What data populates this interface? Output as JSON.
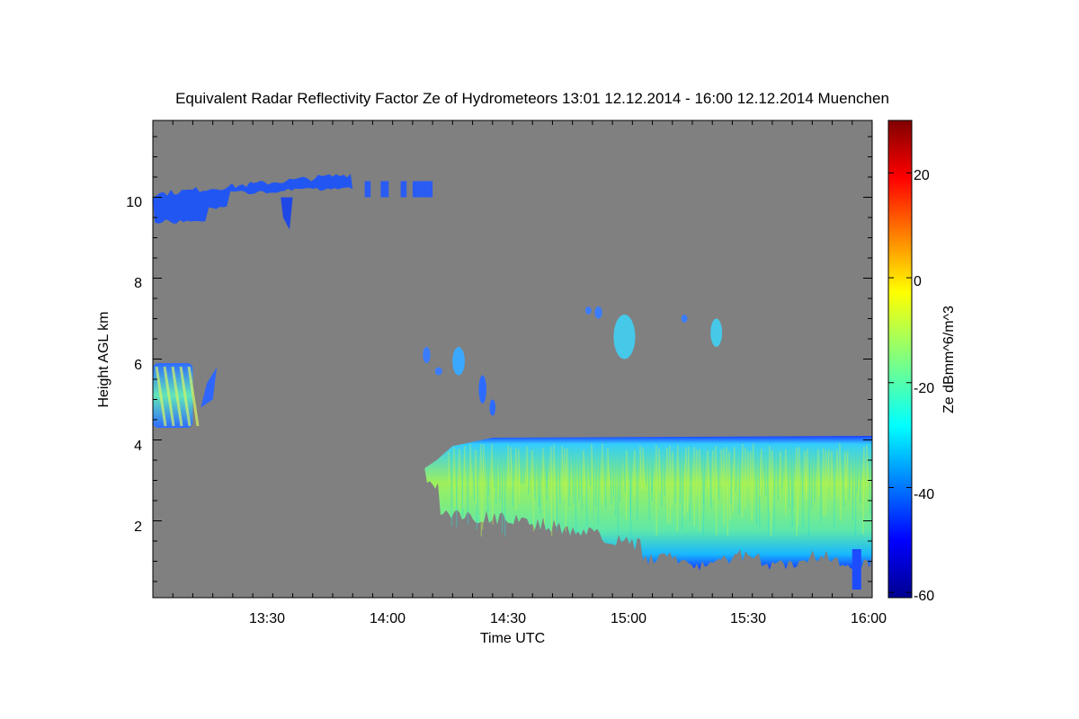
{
  "chart_data": {
    "type": "heatmap",
    "title": "Equivalent Radar Reflectivity Factor Ze of Hydrometeors   13:01 12.12.2014 - 16:00 12.12.2014 Muenchen",
    "xlabel": "Time UTC",
    "ylabel": "Height AGL km",
    "colorbar_label": "Ze dBmm^6/m^3",
    "x_range_minutes_utc": [
      781,
      961
    ],
    "y_range_km": [
      0.1,
      11.9
    ],
    "colorbar_range_dbz": [
      -61,
      30
    ],
    "x_ticks": [
      {
        "label": "13:30",
        "value": 810
      },
      {
        "label": "14:00",
        "value": 840
      },
      {
        "label": "14:30",
        "value": 870
      },
      {
        "label": "15:00",
        "value": 900
      },
      {
        "label": "15:30",
        "value": 930
      },
      {
        "label": "16:00",
        "value": 960
      }
    ],
    "y_ticks": [
      {
        "label": "2",
        "value": 2
      },
      {
        "label": "4",
        "value": 4
      },
      {
        "label": "6",
        "value": 6
      },
      {
        "label": "8",
        "value": 8
      },
      {
        "label": "10",
        "value": 10
      }
    ],
    "colorbar_ticks": [
      {
        "label": "-60",
        "value": -60
      },
      {
        "label": "-40",
        "value": -40
      },
      {
        "label": "-20",
        "value": -20
      },
      {
        "label": "0",
        "value": 0
      },
      {
        "label": "20",
        "value": 20
      }
    ],
    "background_color": "#808080",
    "echo_features": [
      {
        "name": "cirrus-layer",
        "t_start": 781,
        "t_end": 831,
        "z_bottom": 9.4,
        "z_top": 10.6,
        "ze_dbz": -42
      },
      {
        "name": "cirrus-fragments",
        "t_start": 834,
        "t_end": 851,
        "z_bottom": 10.0,
        "z_top": 10.4,
        "ze_dbz": -45
      },
      {
        "name": "cirrus-virga",
        "t_start": 813,
        "t_end": 816,
        "z_bottom": 9.2,
        "z_top": 10.0,
        "ze_dbz": -50
      },
      {
        "name": "mid-level-cells",
        "t_start": 781,
        "t_end": 791,
        "z_bottom": 4.3,
        "z_top": 5.9,
        "ze_dbz": -25
      },
      {
        "name": "mid-level-fragment",
        "t_start": 793,
        "t_end": 797,
        "z_bottom": 4.8,
        "z_top": 5.4,
        "ze_dbz": -40
      },
      {
        "name": "generating-cells-left",
        "t_start": 850,
        "t_end": 870,
        "z_bottom": 4.6,
        "z_top": 6.4,
        "ze_dbz": -38
      },
      {
        "name": "generating-cells-right",
        "t_start": 895,
        "t_end": 940,
        "z_bottom": 5.9,
        "z_top": 7.3,
        "ze_dbz": -33
      },
      {
        "name": "stratiform-precip",
        "t_start": 849,
        "t_end": 961,
        "z_bottom": 0.3,
        "z_top": 4.1,
        "ze_dbz": -20
      }
    ]
  }
}
